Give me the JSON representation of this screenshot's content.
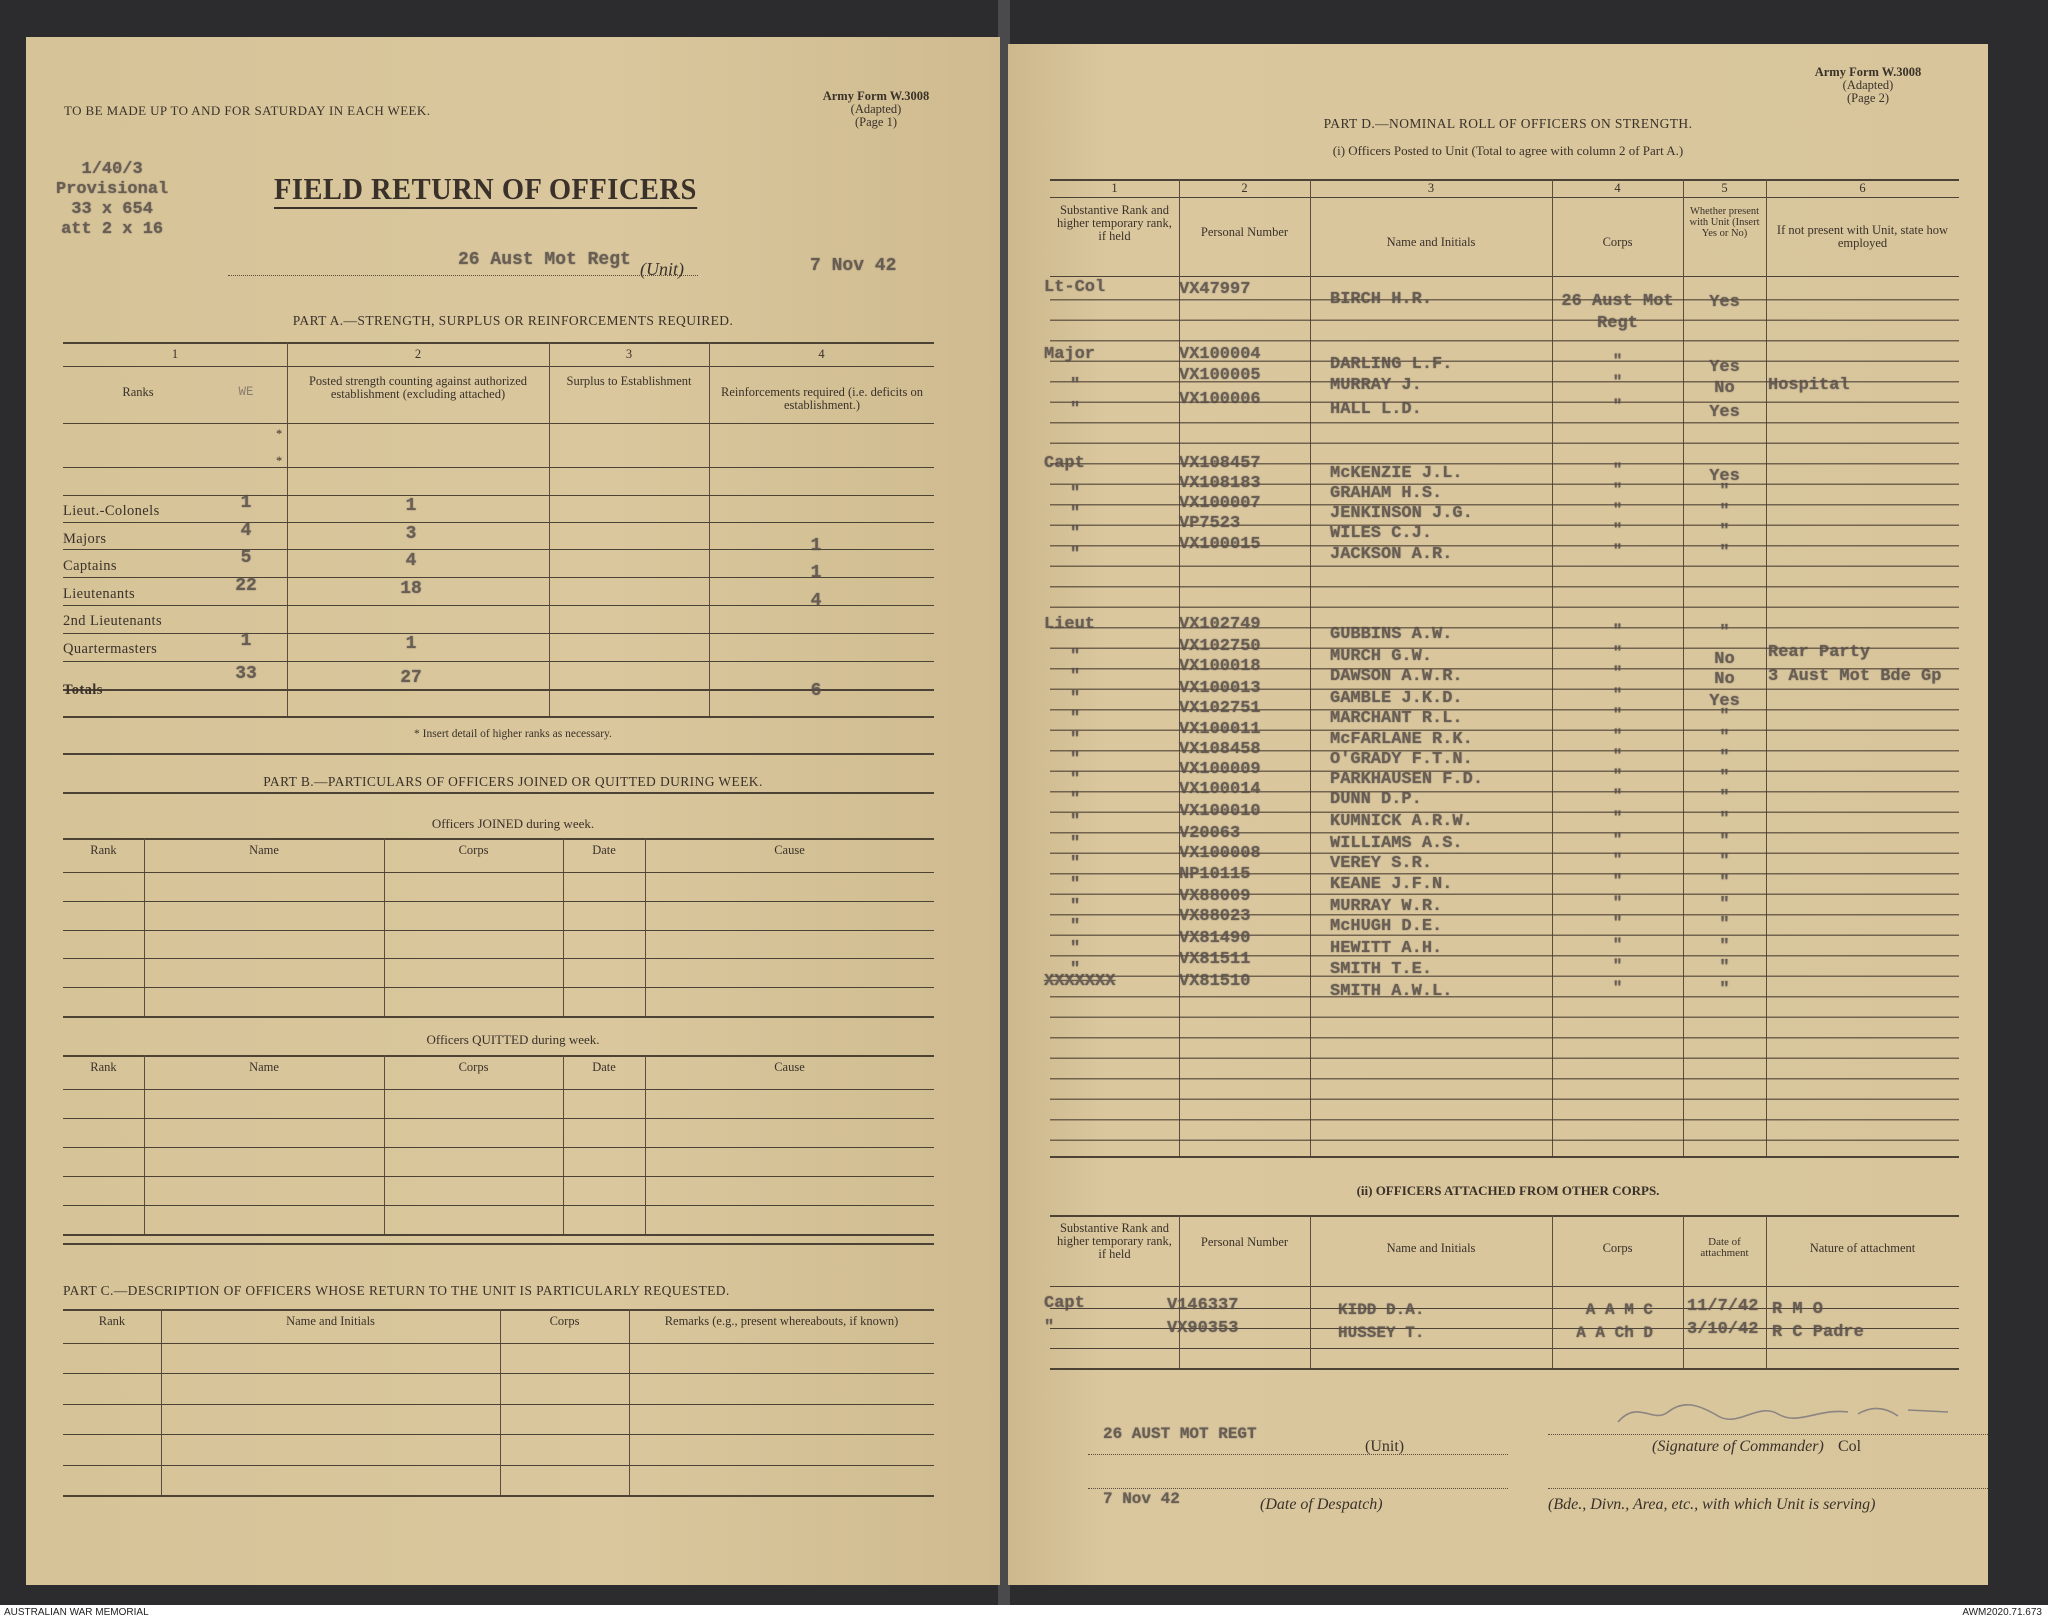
{
  "caption": {
    "left": "AUSTRALIAN WAR MEMORIAL",
    "right": "AWM2020.71.673"
  },
  "page1": {
    "instruction": "TO BE MADE UP TO AND FOR SATURDAY IN EACH WEEK.",
    "form_id": [
      "Army Form W.3008",
      "(Adapted)",
      "(Page 1)"
    ],
    "typed_ref": [
      "1/40/3",
      "Provisional",
      "33 x 654",
      "att 2 x 16"
    ],
    "title": "FIELD RETURN OF OFFICERS",
    "unit_typed": "26 Aust Mot Regt",
    "unit_label": "(Unit)",
    "date_typed": "7 Nov 42",
    "part_a": {
      "heading": "PART A.—STRENGTH, SURPLUS OR REINFORCEMENTS REQUIRED.",
      "col_numbers": [
        "1",
        "2",
        "3",
        "4"
      ],
      "headers": [
        "Ranks",
        "WE",
        "Posted strength counting against authorized establishment (excluding attached)",
        "Surplus to Establishment",
        "Reinforcements required (i.e. deficits on establishment.)"
      ],
      "rows": [
        {
          "rank": "Lieut.-Colonels",
          "we": "1",
          "posted": "1",
          "surplus": "",
          "reinf": ""
        },
        {
          "rank": "Majors",
          "we": "4",
          "posted": "3",
          "surplus": "",
          "reinf": "1"
        },
        {
          "rank": "Captains",
          "we": "5",
          "posted": "4",
          "surplus": "",
          "reinf": "1"
        },
        {
          "rank": "Lieutenants",
          "we": "22",
          "posted": "18",
          "surplus": "",
          "reinf": "4"
        },
        {
          "rank": "2nd Lieutenants",
          "we": "",
          "posted": "",
          "surplus": "",
          "reinf": ""
        },
        {
          "rank": "Quartermasters",
          "we": "1",
          "posted": "1",
          "surplus": "",
          "reinf": ""
        }
      ],
      "totals": {
        "label": "Totals",
        "we": "33",
        "posted": "27",
        "surplus": "",
        "reinf": "6"
      },
      "footnote": "* Insert detail of higher ranks as necessary."
    },
    "part_b": {
      "heading": "PART B.—PARTICULARS OF OFFICERS JOINED OR QUITTED DURING WEEK.",
      "joined_label": "Officers JOINED during week.",
      "quitted_label": "Officers QUITTED during week.",
      "headers": [
        "Rank",
        "Name",
        "Corps",
        "Date",
        "Cause"
      ]
    },
    "part_c": {
      "heading": "PART C.—DESCRIPTION OF OFFICERS WHOSE RETURN TO THE UNIT IS PARTICULARLY REQUESTED.",
      "headers": [
        "Rank",
        "Name and Initials",
        "Corps",
        "Remarks (e.g., present whereabouts, if known)"
      ]
    }
  },
  "page2": {
    "form_id": [
      "Army Form W.3008",
      "(Adapted)",
      "(Page 2)"
    ],
    "part_d": {
      "heading": "PART D.—NOMINAL ROLL OF OFFICERS ON STRENGTH.",
      "sub_i": "(i) Officers Posted to Unit (Total to agree with column 2 of Part A.)",
      "col_numbers": [
        "1",
        "2",
        "3",
        "4",
        "5",
        "6"
      ],
      "headers": [
        "Substantive Rank and higher temporary rank, if held",
        "Personal Number",
        "Name and Initials",
        "Corps",
        "Whether present with Unit (Insert Yes or No)",
        "If not present with Unit, state how employed"
      ],
      "roll": [
        {
          "rank": "Lt-Col",
          "number": "VX47997",
          "name": "BIRCH H.R.",
          "corps": "26 Aust Mot Regt",
          "present": "Yes",
          "employed": ""
        },
        {
          "rank": "Major",
          "number": "VX100004",
          "name": "DARLING L.F.",
          "corps": "\"",
          "present": "Yes",
          "employed": ""
        },
        {
          "rank": "\"",
          "number": "VX100005",
          "name": "MURRAY J.",
          "corps": "\"",
          "present": "No",
          "employed": "Hospital"
        },
        {
          "rank": "\"",
          "number": "VX100006",
          "name": "HALL L.D.",
          "corps": "\"",
          "present": "Yes",
          "employed": ""
        },
        {
          "rank": "Capt",
          "number": "VX108457",
          "name": "McKENZIE J.L.",
          "corps": "\"",
          "present": "Yes",
          "employed": ""
        },
        {
          "rank": "\"",
          "number": "VX108183",
          "name": "GRAHAM H.S.",
          "corps": "\"",
          "present": "\"",
          "employed": ""
        },
        {
          "rank": "\"",
          "number": "VX100007",
          "name": "JENKINSON J.G.",
          "corps": "\"",
          "present": "\"",
          "employed": ""
        },
        {
          "rank": "\"",
          "number": "VP7523",
          "name": "WILES C.J.",
          "corps": "\"",
          "present": "\"",
          "employed": ""
        },
        {
          "rank": "\"",
          "number": "VX100015",
          "name": "JACKSON A.R.",
          "corps": "\"",
          "present": "\"",
          "employed": ""
        },
        {
          "rank": "Lieut",
          "number": "VX102749",
          "name": "GUBBINS A.W.",
          "corps": "\"",
          "present": "\"",
          "employed": ""
        },
        {
          "rank": "\"",
          "number": "VX102750",
          "name": "MURCH G.W.",
          "corps": "\"",
          "present": "No",
          "employed": "Rear Party"
        },
        {
          "rank": "\"",
          "number": "VX100018",
          "name": "DAWSON A.W.R.",
          "corps": "\"",
          "present": "No",
          "employed": "3 Aust Mot Bde Gp"
        },
        {
          "rank": "\"",
          "number": "VX100013",
          "name": "GAMBLE J.K.D.",
          "corps": "\"",
          "present": "Yes",
          "employed": ""
        },
        {
          "rank": "\"",
          "number": "VX102751",
          "name": "MARCHANT R.L.",
          "corps": "\"",
          "present": "\"",
          "employed": ""
        },
        {
          "rank": "\"",
          "number": "VX100011",
          "name": "McFARLANE R.K.",
          "corps": "\"",
          "present": "\"",
          "employed": ""
        },
        {
          "rank": "\"",
          "number": "VX108458",
          "name": "O'GRADY F.T.N.",
          "corps": "\"",
          "present": "\"",
          "employed": ""
        },
        {
          "rank": "\"",
          "number": "VX100009",
          "name": "PARKHAUSEN F.D.",
          "corps": "\"",
          "present": "\"",
          "employed": ""
        },
        {
          "rank": "\"",
          "number": "VX100014",
          "name": "DUNN D.P.",
          "corps": "\"",
          "present": "\"",
          "employed": ""
        },
        {
          "rank": "\"",
          "number": "VX100010",
          "name": "KUMNICK A.R.W.",
          "corps": "\"",
          "present": "\"",
          "employed": ""
        },
        {
          "rank": "\"",
          "number": "V20063",
          "name": "WILLIAMS A.S.",
          "corps": "\"",
          "present": "\"",
          "employed": ""
        },
        {
          "rank": "\"",
          "number": "VX100008",
          "name": "VEREY S.R.",
          "corps": "\"",
          "present": "\"",
          "employed": ""
        },
        {
          "rank": "\"",
          "number": "NP10115",
          "name": "KEANE J.F.N.",
          "corps": "\"",
          "present": "\"",
          "employed": ""
        },
        {
          "rank": "\"",
          "number": "VX88009",
          "name": "MURRAY W.R.",
          "corps": "\"",
          "present": "\"",
          "employed": ""
        },
        {
          "rank": "\"",
          "number": "VX88023",
          "name": "McHUGH D.E.",
          "corps": "\"",
          "present": "\"",
          "employed": ""
        },
        {
          "rank": "\"",
          "number": "VX81490",
          "name": "HEWITT A.H.",
          "corps": "\"",
          "present": "\"",
          "employed": ""
        },
        {
          "rank": "\"",
          "number": "VX81511",
          "name": "SMITH T.E.",
          "corps": "\"",
          "present": "\"",
          "employed": ""
        },
        {
          "rank": "XXXXXXX",
          "number": "VX81510",
          "name": "SMITH A.W.L.",
          "corps": "\"",
          "present": "\"",
          "employed": ""
        }
      ],
      "sub_ii": "(ii) OFFICERS ATTACHED FROM OTHER CORPS.",
      "headers_ii": [
        "Substantive Rank and higher temporary rank, if held",
        "Personal Number",
        "Name and Initials",
        "Corps",
        "Date of attachment",
        "Nature of attachment"
      ],
      "attached": [
        {
          "rank": "Capt",
          "number": "V146337",
          "name": "KIDD D.A.",
          "corps": "A A M C",
          "date": "11/7/42",
          "nature": "R M O"
        },
        {
          "rank": "\"",
          "number": "VX90353",
          "name": "HUSSEY T.",
          "corps": "A A Ch D",
          "date": "3/10/42",
          "nature": "R C Padre"
        }
      ]
    },
    "footer": {
      "unit_typed": "26 AUST MOT REGT",
      "unit_label": "(Unit)",
      "signature_label": "(Signature of Commander)",
      "signature_suffix": "Col",
      "date_typed": "7 Nov 42",
      "date_label": "(Date of Despatch)",
      "formation_label": "(Bde., Divn., Area, etc., with which Unit is serving)"
    }
  }
}
